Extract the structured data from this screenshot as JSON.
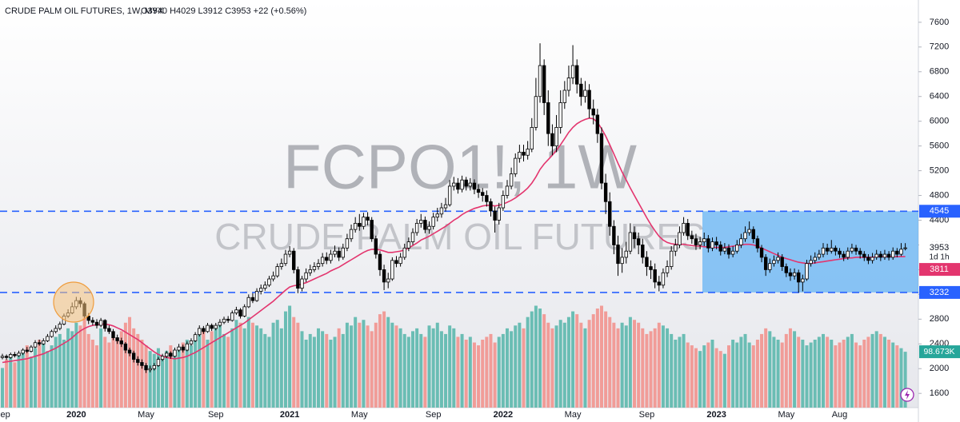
{
  "chart_data": {
    "type": "candlestick",
    "title": "CRUDE PALM OIL FUTURES, 1W, MYX",
    "ohlc_text": "O3940  H4029  L3912  C3953  +22 (+0.56%)",
    "watermark": [
      "FCPO1!, 1W",
      "CRUDE PALM OIL FUTURES"
    ],
    "categories": [
      "Sep",
      null,
      null,
      null,
      null,
      null,
      null,
      null,
      null,
      null,
      null,
      null,
      null,
      null,
      null,
      null,
      null,
      null,
      "2020",
      null,
      null,
      null,
      null,
      null,
      null,
      null,
      null,
      null,
      null,
      null,
      null,
      null,
      null,
      null,
      null,
      "May",
      null,
      null,
      null,
      null,
      null,
      null,
      null,
      null,
      null,
      null,
      null,
      null,
      null,
      null,
      null,
      null,
      "Sep",
      null,
      null,
      null,
      null,
      null,
      null,
      null,
      null,
      null,
      null,
      null,
      null,
      null,
      null,
      null,
      null,
      null,
      "2021",
      null,
      null,
      null,
      null,
      null,
      null,
      null,
      null,
      null,
      null,
      null,
      null,
      null,
      null,
      null,
      null,
      "May",
      null,
      null,
      null,
      null,
      null,
      null,
      null,
      null,
      null,
      null,
      null,
      null,
      null,
      null,
      null,
      null,
      null,
      "Sep",
      null,
      null,
      null,
      null,
      null,
      null,
      null,
      null,
      null,
      null,
      null,
      null,
      null,
      null,
      null,
      null,
      "2022",
      null,
      null,
      null,
      null,
      null,
      null,
      null,
      null,
      null,
      null,
      null,
      null,
      null,
      null,
      null,
      null,
      "May",
      null,
      null,
      null,
      null,
      null,
      null,
      null,
      null,
      null,
      null,
      null,
      null,
      null,
      null,
      null,
      null,
      null,
      "Sep",
      null,
      null,
      null,
      null,
      null,
      null,
      null,
      null,
      null,
      null,
      null,
      null,
      null,
      null,
      null,
      null,
      "2023",
      null,
      null,
      null,
      null,
      null,
      null,
      null,
      null,
      null,
      null,
      null,
      null,
      null,
      null,
      null,
      null,
      "May",
      null,
      null,
      null,
      null,
      null,
      null,
      null,
      null,
      null,
      null,
      null,
      null,
      "Aug",
      null,
      null,
      null,
      null,
      null,
      null,
      null,
      null,
      null,
      null,
      null,
      null,
      null,
      null,
      null,
      null
    ],
    "open": [
      2180,
      2200,
      2180,
      2230,
      2210,
      2250,
      2300,
      2280,
      2350,
      2420,
      2400,
      2450,
      2520,
      2600,
      2650,
      2720,
      2850,
      2900,
      3000,
      3100,
      3050,
      2850,
      2780,
      2750,
      2700,
      2780,
      2650,
      2600,
      2500,
      2450,
      2400,
      2300,
      2250,
      2150,
      2100,
      2050,
      1980,
      2000,
      2050,
      2150,
      2200,
      2250,
      2200,
      2300,
      2350,
      2300,
      2400,
      2450,
      2550,
      2650,
      2600,
      2700,
      2650,
      2700,
      2750,
      2800,
      2780,
      2900,
      2950,
      2850,
      3000,
      3150,
      3100,
      3250,
      3300,
      3350,
      3450,
      3500,
      3650,
      3700,
      3850,
      3900,
      3600,
      3300,
      3450,
      3550,
      3600,
      3650,
      3700,
      3800,
      3750,
      3850,
      3900,
      3800,
      3950,
      4100,
      4250,
      4350,
      4300,
      4450,
      4400,
      4100,
      3850,
      3600,
      3400,
      3450,
      3750,
      3700,
      3800,
      3950,
      4050,
      4200,
      4350,
      4400,
      4250,
      4300,
      4450,
      4500,
      4600,
      4650,
      4950,
      5000,
      4900,
      5050,
      4950,
      5000,
      4900,
      4850,
      4800,
      4700,
      4550,
      4400,
      4600,
      4800,
      4950,
      5150,
      5400,
      5500,
      5450,
      5550,
      5900,
      6400,
      6900,
      6300,
      5800,
      5600,
      5900,
      6300,
      6500,
      6700,
      6900,
      6600,
      6400,
      6500,
      6200,
      6100,
      5800,
      5000,
      4700,
      4300,
      4000,
      3700,
      3800,
      3900,
      4200,
      4100,
      4000,
      3800,
      3650,
      3600,
      3400,
      3350,
      3550,
      3650,
      3900,
      4000,
      4200,
      4350,
      4150,
      4100,
      4000,
      4050,
      4100,
      3950,
      4050,
      4000,
      3900,
      3950,
      3850,
      3900,
      4000,
      4100,
      4200,
      4250,
      4100,
      3950,
      3800,
      3600,
      3700,
      3750,
      3800,
      3650,
      3550,
      3500,
      3550,
      3400,
      3450,
      3700,
      3750,
      3800,
      3850,
      3950,
      3900,
      3950,
      3900,
      3850,
      3800,
      3900,
      3950,
      3900,
      3850,
      3800,
      3750,
      3800,
      3850,
      3800,
      3850,
      3800,
      3900,
      3850,
      3940
    ],
    "high": [
      2240,
      2230,
      2260,
      2270,
      2290,
      2330,
      2350,
      2380,
      2460,
      2470,
      2490,
      2560,
      2630,
      2700,
      2760,
      2890,
      2960,
      3070,
      3160,
      3150,
      3080,
      2900,
      2830,
      2800,
      2820,
      2800,
      2700,
      2640,
      2550,
      2500,
      2430,
      2340,
      2290,
      2200,
      2150,
      2090,
      2050,
      2090,
      2190,
      2240,
      2290,
      2280,
      2340,
      2400,
      2390,
      2440,
      2490,
      2590,
      2700,
      2690,
      2740,
      2730,
      2740,
      2800,
      2840,
      2850,
      2940,
      3000,
      2980,
      3040,
      3200,
      3220,
      3300,
      3360,
      3410,
      3500,
      3570,
      3700,
      3780,
      3920,
      3980,
      3950,
      3650,
      3500,
      3620,
      3680,
      3720,
      3770,
      3870,
      3880,
      3920,
      3990,
      3960,
      4020,
      4180,
      4330,
      4450,
      4500,
      4520,
      4530,
      4450,
      4150,
      3900,
      3680,
      3550,
      3800,
      3820,
      3870,
      4020,
      4120,
      4270,
      4420,
      4500,
      4460,
      4380,
      4520,
      4600,
      4680,
      4760,
      5050,
      5100,
      5080,
      5120,
      5100,
      5080,
      5060,
      4980,
      4920,
      4880,
      4750,
      4620,
      4680,
      4880,
      5050,
      5250,
      5480,
      5620,
      5620,
      5680,
      6050,
      6700,
      7260,
      7000,
      6500,
      5950,
      6100,
      6500,
      6650,
      6900,
      7230,
      7000,
      6700,
      6650,
      6600,
      6350,
      6200,
      5900,
      5150,
      4850,
      4400,
      4150,
      3950,
      4050,
      4350,
      4300,
      4200,
      4100,
      3900,
      3750,
      3700,
      3500,
      3620,
      3750,
      3980,
      4100,
      4300,
      4450,
      4420,
      4230,
      4180,
      4130,
      4200,
      4160,
      4120,
      4130,
      4060,
      4030,
      4010,
      3980,
      4080,
      4180,
      4300,
      4380,
      4300,
      4150,
      4000,
      3850,
      3780,
      3830,
      3880,
      3850,
      3700,
      3620,
      3620,
      3600,
      3520,
      3760,
      3830,
      3880,
      3920,
      4030,
      4020,
      4080,
      3990,
      3950,
      3900,
      3960,
      4020,
      4000,
      3950,
      3900,
      3850,
      3870,
      3920,
      3900,
      3920,
      3900,
      3960,
      3950,
      4030,
      4029
    ],
    "low": [
      2150,
      2140,
      2160,
      2180,
      2190,
      2220,
      2250,
      2260,
      2330,
      2370,
      2380,
      2430,
      2500,
      2570,
      2620,
      2700,
      2820,
      2880,
      2960,
      2990,
      2820,
      2720,
      2700,
      2650,
      2670,
      2600,
      2560,
      2460,
      2400,
      2350,
      2250,
      2200,
      2100,
      2050,
      2000,
      1930,
      1940,
      1970,
      2030,
      2120,
      2170,
      2160,
      2180,
      2270,
      2260,
      2280,
      2370,
      2430,
      2520,
      2560,
      2580,
      2610,
      2620,
      2670,
      2720,
      2740,
      2760,
      2870,
      2810,
      2830,
      2980,
      3060,
      3080,
      3200,
      3260,
      3320,
      3410,
      3470,
      3600,
      3660,
      3800,
      3540,
      3220,
      3250,
      3400,
      3500,
      3560,
      3600,
      3650,
      3690,
      3700,
      3800,
      3740,
      3760,
      3900,
      4050,
      4200,
      4230,
      4250,
      4320,
      4050,
      3780,
      3500,
      3270,
      3300,
      3420,
      3640,
      3650,
      3760,
      3900,
      4000,
      4150,
      4280,
      4190,
      4180,
      4250,
      4380,
      4440,
      4540,
      4620,
      4880,
      4830,
      4850,
      4880,
      4880,
      4820,
      4760,
      4700,
      4620,
      4460,
      4200,
      4330,
      4550,
      4750,
      4900,
      5100,
      5330,
      5350,
      5380,
      5500,
      5850,
      6300,
      6100,
      5600,
      5450,
      5500,
      5800,
      6200,
      6400,
      6600,
      6450,
      6250,
      6300,
      6050,
      5950,
      5650,
      4900,
      4500,
      4150,
      3850,
      3500,
      3550,
      3700,
      3850,
      3950,
      3850,
      3700,
      3500,
      3450,
      3300,
      3250,
      3300,
      3480,
      3600,
      3820,
      3950,
      4150,
      4080,
      4020,
      3920,
      3930,
      3980,
      3880,
      3900,
      3930,
      3830,
      3850,
      3780,
      3800,
      3860,
      3950,
      4050,
      4150,
      4030,
      3880,
      3720,
      3500,
      3550,
      3650,
      3700,
      3580,
      3480,
      3420,
      3440,
      3230,
      3250,
      3420,
      3650,
      3700,
      3760,
      3800,
      3840,
      3860,
      3830,
      3790,
      3740,
      3760,
      3860,
      3840,
      3780,
      3740,
      3690,
      3700,
      3760,
      3740,
      3760,
      3750,
      3760,
      3800,
      3820,
      3912
    ],
    "close": [
      2200,
      2180,
      2230,
      2210,
      2250,
      2300,
      2280,
      2350,
      2420,
      2400,
      2450,
      2520,
      2600,
      2650,
      2720,
      2850,
      2900,
      3000,
      3100,
      3050,
      2850,
      2780,
      2750,
      2700,
      2780,
      2650,
      2600,
      2500,
      2450,
      2400,
      2300,
      2250,
      2150,
      2100,
      2050,
      1980,
      2000,
      2050,
      2150,
      2200,
      2250,
      2200,
      2300,
      2350,
      2300,
      2400,
      2450,
      2550,
      2650,
      2600,
      2700,
      2650,
      2700,
      2750,
      2800,
      2780,
      2900,
      2950,
      2850,
      3000,
      3150,
      3100,
      3250,
      3300,
      3350,
      3450,
      3500,
      3650,
      3700,
      3850,
      3900,
      3600,
      3300,
      3450,
      3550,
      3600,
      3650,
      3700,
      3800,
      3750,
      3850,
      3900,
      3800,
      3950,
      4100,
      4250,
      4350,
      4300,
      4450,
      4400,
      4100,
      3850,
      3600,
      3400,
      3450,
      3750,
      3700,
      3800,
      3950,
      4050,
      4200,
      4350,
      4400,
      4250,
      4300,
      4450,
      4500,
      4600,
      4650,
      4950,
      5000,
      4900,
      5050,
      4950,
      5000,
      4900,
      4850,
      4800,
      4700,
      4550,
      4400,
      4600,
      4800,
      4950,
      5150,
      5400,
      5500,
      5450,
      5550,
      5900,
      6400,
      6900,
      6300,
      5800,
      5600,
      5900,
      6300,
      6500,
      6700,
      6900,
      6600,
      6400,
      6500,
      6200,
      6100,
      5800,
      5000,
      4700,
      4300,
      4000,
      3700,
      3800,
      3900,
      4200,
      4100,
      4000,
      3800,
      3650,
      3600,
      3400,
      3350,
      3550,
      3650,
      3900,
      4000,
      4200,
      4350,
      4150,
      4100,
      4000,
      4050,
      4100,
      3950,
      4050,
      4000,
      3900,
      3950,
      3850,
      3900,
      4000,
      4100,
      4200,
      4250,
      4100,
      3950,
      3800,
      3600,
      3700,
      3750,
      3800,
      3650,
      3550,
      3500,
      3550,
      3400,
      3450,
      3700,
      3750,
      3800,
      3850,
      3950,
      3900,
      3950,
      3900,
      3850,
      3800,
      3900,
      3950,
      3900,
      3850,
      3800,
      3750,
      3800,
      3850,
      3800,
      3850,
      3800,
      3900,
      3850,
      3931,
      3953
    ],
    "volume": [
      70,
      85,
      90,
      80,
      95,
      100,
      110,
      90,
      105,
      120,
      115,
      100,
      110,
      125,
      130,
      120,
      140,
      135,
      150,
      145,
      160,
      130,
      120,
      110,
      140,
      125,
      115,
      130,
      120,
      135,
      150,
      160,
      140,
      130,
      120,
      110,
      100,
      95,
      105,
      90,
      100,
      110,
      95,
      105,
      115,
      120,
      110,
      125,
      130,
      140,
      120,
      135,
      145,
      150,
      130,
      125,
      140,
      155,
      150,
      140,
      160,
      150,
      145,
      140,
      130,
      125,
      150,
      155,
      140,
      170,
      180,
      160,
      150,
      135,
      120,
      130,
      125,
      140,
      135,
      130,
      120,
      125,
      140,
      130,
      150,
      145,
      160,
      150,
      155,
      145,
      135,
      150,
      165,
      170,
      160,
      150,
      145,
      140,
      130,
      125,
      135,
      140,
      130,
      125,
      145,
      140,
      150,
      135,
      130,
      145,
      140,
      125,
      130,
      120,
      125,
      115,
      110,
      120,
      125,
      130,
      115,
      125,
      130,
      140,
      135,
      145,
      150,
      140,
      160,
      170,
      180,
      175,
      165,
      150,
      140,
      145,
      155,
      150,
      160,
      170,
      165,
      150,
      140,
      155,
      165,
      175,
      180,
      170,
      160,
      150,
      140,
      150,
      145,
      160,
      155,
      150,
      140,
      130,
      135,
      140,
      150,
      145,
      140,
      130,
      120,
      125,
      130,
      115,
      110,
      105,
      100,
      110,
      115,
      120,
      105,
      100,
      95,
      110,
      120,
      115,
      125,
      130,
      115,
      110,
      120,
      130,
      140,
      135,
      125,
      120,
      115,
      130,
      140,
      135,
      125,
      120,
      110,
      115,
      120,
      125,
      130,
      125,
      120,
      110,
      115,
      120,
      125,
      130,
      115,
      110,
      120,
      125,
      130,
      135,
      130,
      125,
      120,
      115,
      110,
      105,
      98.673
    ],
    "volume_lim": [
      0,
      360
    ],
    "volume_last_label": "98.673K",
    "ma": {
      "color": "#e3356e",
      "values": [
        2100,
        2110,
        2120,
        2130,
        2140,
        2150,
        2160,
        2180,
        2200,
        2220,
        2240,
        2270,
        2300,
        2330,
        2370,
        2410,
        2450,
        2500,
        2560,
        2610,
        2650,
        2680,
        2700,
        2710,
        2720,
        2720,
        2710,
        2690,
        2660,
        2630,
        2590,
        2550,
        2510,
        2470,
        2420,
        2370,
        2320,
        2270,
        2230,
        2200,
        2180,
        2170,
        2160,
        2170,
        2180,
        2200,
        2230,
        2260,
        2300,
        2340,
        2380,
        2420,
        2460,
        2500,
        2540,
        2580,
        2620,
        2660,
        2700,
        2740,
        2790,
        2840,
        2890,
        2940,
        2990,
        3040,
        3090,
        3150,
        3210,
        3270,
        3320,
        3340,
        3350,
        3370,
        3390,
        3420,
        3450,
        3480,
        3510,
        3540,
        3580,
        3610,
        3640,
        3680,
        3720,
        3760,
        3800,
        3840,
        3880,
        3910,
        3930,
        3930,
        3920,
        3900,
        3880,
        3880,
        3890,
        3900,
        3920,
        3950,
        3990,
        4030,
        4080,
        4110,
        4140,
        4180,
        4220,
        4260,
        4300,
        4350,
        4400,
        4440,
        4490,
        4530,
        4560,
        4590,
        4610,
        4630,
        4640,
        4640,
        4630,
        4640,
        4660,
        4690,
        4720,
        4760,
        4810,
        4860,
        4920,
        5000,
        5100,
        5220,
        5310,
        5380,
        5450,
        5530,
        5620,
        5720,
        5820,
        5900,
        5960,
        6000,
        6030,
        6050,
        6040,
        5980,
        5880,
        5760,
        5620,
        5470,
        5320,
        5180,
        5050,
        4920,
        4800,
        4680,
        4560,
        4440,
        4330,
        4230,
        4140,
        4080,
        4040,
        4020,
        4010,
        4010,
        4010,
        4000,
        3990,
        3980,
        3980,
        3970,
        3970,
        3960,
        3960,
        3960,
        3960,
        3970,
        3980,
        3990,
        4000,
        4010,
        4010,
        4000,
        3980,
        3950,
        3920,
        3890,
        3860,
        3830,
        3800,
        3780,
        3760,
        3740,
        3720,
        3710,
        3700,
        3700,
        3710,
        3720,
        3730,
        3740,
        3750,
        3760,
        3770,
        3780,
        3790,
        3790,
        3800,
        3800,
        3800,
        3800,
        3800,
        3810,
        3810,
        3810,
        3810,
        3810,
        3810,
        3811,
        3811
      ]
    },
    "ylim": [
      1370,
      7960
    ],
    "yticks": [
      1600,
      2000,
      2400,
      2800,
      3200,
      3600,
      4000,
      4400,
      4800,
      5200,
      5600,
      6000,
      6400,
      6800,
      7200,
      7600
    ],
    "levels": [
      4545,
      3232
    ],
    "level_color": "#2962ff",
    "countdown": "1d 1h",
    "up_color": "#ffffff",
    "down_color": "#000000",
    "volume_up_color": "#5cb8ad",
    "volume_down_color": "#f2948e"
  }
}
